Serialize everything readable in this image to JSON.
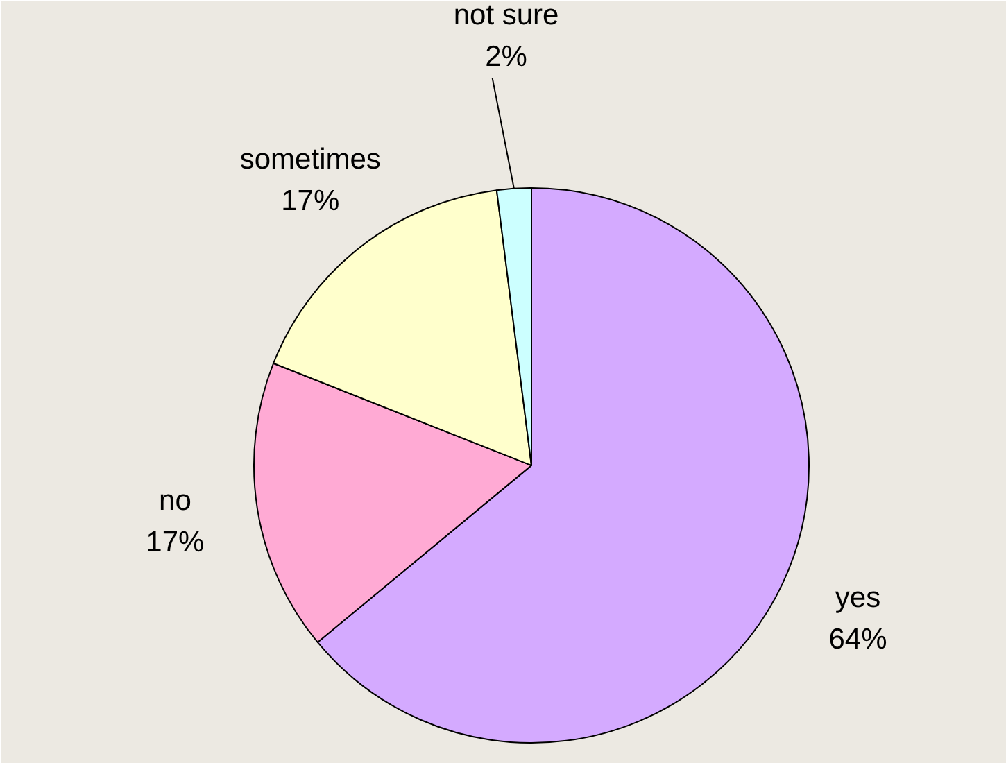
{
  "chart_data": {
    "type": "pie",
    "categories": [
      "yes",
      "no",
      "sometimes",
      "not sure"
    ],
    "values": [
      64,
      17,
      17,
      2
    ],
    "colors": [
      "#d4aaff",
      "#ffaad4",
      "#ffffcc",
      "#ccffff"
    ],
    "value_labels": [
      "64%",
      "17%",
      "17%",
      "2%"
    ]
  }
}
